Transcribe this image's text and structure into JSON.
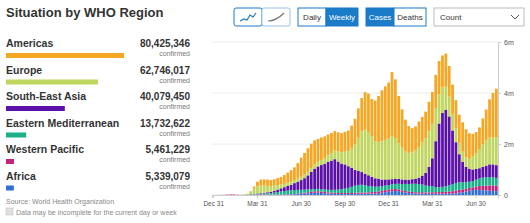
{
  "chart_data": {
    "type": "bar",
    "title": "Situation by WHO Region",
    "stacked": true,
    "grid": true,
    "categories": [
      "Dec 31",
      null,
      null,
      null,
      null,
      null,
      null,
      null,
      null,
      null,
      null,
      null,
      null,
      "Mar 31",
      null,
      null,
      null,
      null,
      null,
      null,
      null,
      null,
      null,
      null,
      null,
      null,
      "Jun 30",
      null,
      null,
      null,
      null,
      null,
      null,
      null,
      null,
      null,
      null,
      null,
      null,
      "Sep 30",
      null,
      null,
      null,
      null,
      null,
      null,
      null,
      null,
      null,
      null,
      null,
      null,
      "Dec 31",
      null,
      null,
      null,
      null,
      null,
      null,
      null,
      null,
      null,
      null,
      null,
      null,
      "Mar 31",
      null,
      null,
      null,
      null,
      null,
      null,
      null,
      null,
      null,
      null,
      null,
      null,
      "Jun 30",
      null,
      null,
      null,
      null,
      null,
      null
    ],
    "ylim": [
      0,
      6
    ],
    "yticks": [
      0,
      {
        "value": 2,
        "label": "2m"
      },
      {
        "value": 4,
        "label": "4m"
      },
      {
        "value": 6,
        "label": "6m"
      }
    ],
    "series": [
      {
        "name": "Americas",
        "color": "#f5a623",
        "total": 80425346,
        "values": [
          0,
          0,
          0,
          0,
          0,
          0,
          0,
          0,
          0,
          0.001,
          0.003,
          0.02,
          0.08,
          0.18,
          0.22,
          0.24,
          0.25,
          0.24,
          0.25,
          0.27,
          0.3,
          0.35,
          0.4,
          0.45,
          0.5,
          0.6,
          0.75,
          0.85,
          0.92,
          0.95,
          0.95,
          0.9,
          0.88,
          0.85,
          0.8,
          0.78,
          0.75,
          0.75,
          0.75,
          0.78,
          0.8,
          0.9,
          1.0,
          1.15,
          1.3,
          1.45,
          1.5,
          1.45,
          1.6,
          1.8,
          2.0,
          2.1,
          2.2,
          2.5,
          2.3,
          1.85,
          1.5,
          1.25,
          1.05,
          0.95,
          0.95,
          1.0,
          1.0,
          1.05,
          1.15,
          1.25,
          1.3,
          1.3,
          1.25,
          1.3,
          1.2,
          1.15,
          1.1,
          1.1,
          1.15,
          1.1,
          1.0,
          0.9,
          0.85,
          0.85,
          1.0,
          1.2,
          1.5,
          1.75,
          1.9
        ]
      },
      {
        "name": "Europe",
        "color": "#bfd661",
        "total": 62746017,
        "values": [
          0,
          0,
          0,
          0,
          0,
          0,
          0,
          0,
          0,
          0.005,
          0.03,
          0.1,
          0.2,
          0.28,
          0.3,
          0.28,
          0.25,
          0.22,
          0.2,
          0.18,
          0.15,
          0.13,
          0.12,
          0.12,
          0.12,
          0.13,
          0.13,
          0.14,
          0.14,
          0.15,
          0.16,
          0.18,
          0.2,
          0.23,
          0.27,
          0.3,
          0.35,
          0.4,
          0.45,
          0.5,
          0.6,
          0.75,
          1.0,
          1.3,
          1.6,
          1.75,
          1.7,
          1.6,
          1.45,
          1.45,
          1.5,
          1.55,
          1.6,
          1.7,
          1.6,
          1.4,
          1.25,
          1.1,
          1.05,
          1.05,
          1.1,
          1.2,
          1.3,
          1.35,
          1.4,
          1.35,
          1.3,
          1.15,
          1.0,
          0.9,
          0.78,
          0.65,
          0.55,
          0.45,
          0.4,
          0.38,
          0.4,
          0.5,
          0.6,
          0.75,
          0.9,
          1.0,
          1.05,
          1.05,
          1.1
        ]
      },
      {
        "name": "South-East Asia",
        "color": "#5b10a8",
        "total": 40079450,
        "values": [
          0,
          0,
          0,
          0,
          0,
          0,
          0,
          0,
          0,
          0,
          0.001,
          0.002,
          0.005,
          0.01,
          0.02,
          0.03,
          0.04,
          0.05,
          0.07,
          0.09,
          0.12,
          0.15,
          0.19,
          0.22,
          0.27,
          0.32,
          0.38,
          0.45,
          0.55,
          0.68,
          0.8,
          0.88,
          0.95,
          1.0,
          1.1,
          1.15,
          1.2,
          1.1,
          1.0,
          0.95,
          0.85,
          0.75,
          0.62,
          0.55,
          0.5,
          0.45,
          0.42,
          0.38,
          0.33,
          0.3,
          0.26,
          0.24,
          0.22,
          0.2,
          0.2,
          0.19,
          0.18,
          0.17,
          0.17,
          0.18,
          0.2,
          0.25,
          0.35,
          0.5,
          0.75,
          1.1,
          1.8,
          2.5,
          2.9,
          3.0,
          2.7,
          2.1,
          1.6,
          1.1,
          0.8,
          0.6,
          0.5,
          0.45,
          0.42,
          0.4,
          0.42,
          0.45,
          0.5,
          0.5,
          0.5
        ]
      },
      {
        "name": "Eastern Mediterranean",
        "color": "#1bb08a",
        "total": 13732622,
        "values": [
          0,
          0,
          0,
          0,
          0,
          0,
          0,
          0,
          0,
          0.005,
          0.01,
          0.02,
          0.03,
          0.03,
          0.04,
          0.04,
          0.05,
          0.06,
          0.08,
          0.1,
          0.12,
          0.13,
          0.14,
          0.15,
          0.15,
          0.14,
          0.13,
          0.12,
          0.11,
          0.1,
          0.09,
          0.09,
          0.09,
          0.1,
          0.1,
          0.11,
          0.12,
          0.13,
          0.15,
          0.17,
          0.2,
          0.24,
          0.28,
          0.3,
          0.3,
          0.28,
          0.25,
          0.22,
          0.2,
          0.19,
          0.18,
          0.18,
          0.18,
          0.19,
          0.2,
          0.22,
          0.25,
          0.28,
          0.3,
          0.32,
          0.33,
          0.32,
          0.3,
          0.27,
          0.25,
          0.23,
          0.2,
          0.19,
          0.2,
          0.22,
          0.25,
          0.28,
          0.3,
          0.3,
          0.28,
          0.26,
          0.25,
          0.25,
          0.27,
          0.3,
          0.32,
          0.33,
          0.33,
          0.32,
          0.3
        ]
      },
      {
        "name": "Western Pacific",
        "color": "#c4237b",
        "total": 5461229,
        "values": [
          0,
          0.001,
          0.002,
          0.005,
          0.015,
          0.02,
          0.02,
          0.01,
          0.005,
          0.005,
          0.005,
          0.01,
          0.015,
          0.02,
          0.02,
          0.015,
          0.01,
          0.01,
          0.01,
          0.01,
          0.01,
          0.01,
          0.01,
          0.01,
          0.015,
          0.02,
          0.025,
          0.03,
          0.04,
          0.05,
          0.055,
          0.06,
          0.055,
          0.05,
          0.045,
          0.04,
          0.04,
          0.04,
          0.04,
          0.04,
          0.04,
          0.04,
          0.04,
          0.045,
          0.05,
          0.05,
          0.055,
          0.06,
          0.065,
          0.07,
          0.075,
          0.08,
          0.08,
          0.08,
          0.075,
          0.07,
          0.06,
          0.055,
          0.05,
          0.05,
          0.05,
          0.05,
          0.05,
          0.05,
          0.055,
          0.06,
          0.06,
          0.065,
          0.07,
          0.075,
          0.08,
          0.09,
          0.1,
          0.11,
          0.11,
          0.1,
          0.1,
          0.11,
          0.13,
          0.15,
          0.17,
          0.19,
          0.2,
          0.22,
          0.22
        ]
      },
      {
        "name": "Africa",
        "color": "#2f6fd6",
        "total": 5339079,
        "values": [
          0,
          0,
          0,
          0,
          0,
          0,
          0,
          0,
          0,
          0,
          0.0005,
          0.001,
          0.002,
          0.003,
          0.004,
          0.005,
          0.006,
          0.007,
          0.008,
          0.01,
          0.012,
          0.015,
          0.02,
          0.025,
          0.03,
          0.04,
          0.05,
          0.06,
          0.07,
          0.08,
          0.09,
          0.09,
          0.08,
          0.07,
          0.06,
          0.05,
          0.045,
          0.04,
          0.04,
          0.04,
          0.04,
          0.04,
          0.045,
          0.05,
          0.05,
          0.05,
          0.05,
          0.055,
          0.06,
          0.07,
          0.09,
          0.11,
          0.13,
          0.15,
          0.16,
          0.15,
          0.12,
          0.1,
          0.08,
          0.07,
          0.06,
          0.06,
          0.06,
          0.05,
          0.05,
          0.05,
          0.05,
          0.05,
          0.05,
          0.05,
          0.05,
          0.06,
          0.07,
          0.09,
          0.11,
          0.14,
          0.17,
          0.19,
          0.2,
          0.2,
          0.19,
          0.18,
          0.17,
          0.16,
          0.15
        ]
      }
    ]
  },
  "page": {
    "confirmed_label": "confirmed",
    "source": "Source: World Health Organization",
    "note": "Data may be incomplete for the current day or week",
    "controls": {
      "frequency": {
        "options": [
          "Daily",
          "Weekly"
        ],
        "selected": "Weekly"
      },
      "measure": {
        "options": [
          "Cases",
          "Deaths"
        ],
        "selected": "Cases"
      },
      "scale": {
        "selected": "Count"
      }
    }
  }
}
